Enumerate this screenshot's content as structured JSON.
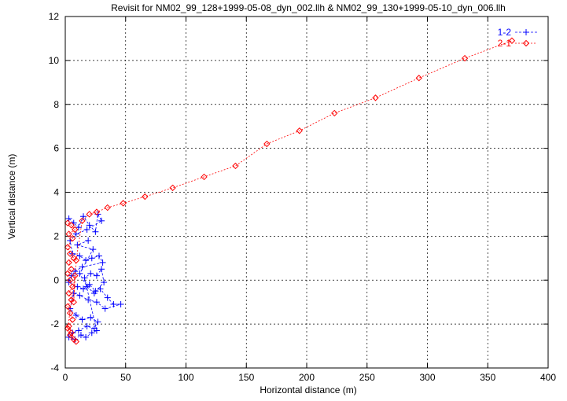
{
  "chart_data": {
    "type": "scatter",
    "title": "Revisit for NM02_99_128+1999-05-08_dyn_002.llh & NM02_99_130+1999-05-10_dyn_006.llh",
    "xlabel": "Horizontal distance (m)",
    "ylabel": "Vertical distance (m)",
    "xlim": [
      0,
      400
    ],
    "ylim": [
      -4,
      12
    ],
    "x_ticks": [
      0,
      50,
      100,
      150,
      200,
      250,
      300,
      350,
      400
    ],
    "y_ticks": [
      -4,
      -2,
      0,
      2,
      4,
      6,
      8,
      10,
      12
    ],
    "grid": true,
    "legend_position": "top-right",
    "series": [
      {
        "name": "1-2",
        "color": "#0000ff",
        "marker": "plus",
        "line": "dashed",
        "points": [
          [
            3,
            2.8
          ],
          [
            7,
            2.6
          ],
          [
            11,
            2.4
          ],
          [
            15,
            2.9
          ],
          [
            20,
            2.5
          ],
          [
            25,
            2.2
          ],
          [
            27,
            3.0
          ],
          [
            30,
            2.7
          ],
          [
            18,
            2.3
          ],
          [
            9,
            2.1
          ],
          [
            4,
            1.8
          ],
          [
            6,
            1.2
          ],
          [
            12,
            1.1
          ],
          [
            17,
            0.9
          ],
          [
            22,
            1.0
          ],
          [
            28,
            1.1
          ],
          [
            31,
            0.8
          ],
          [
            14,
            0.6
          ],
          [
            8,
            0.4
          ],
          [
            5,
            0.2
          ],
          [
            3,
            -0.1
          ],
          [
            10,
            -0.3
          ],
          [
            15,
            -0.4
          ],
          [
            20,
            -0.2
          ],
          [
            25,
            -0.5
          ],
          [
            29,
            -0.4
          ],
          [
            35,
            -0.8
          ],
          [
            40,
            -1.1
          ],
          [
            46,
            -1.1
          ],
          [
            33,
            -1.3
          ],
          [
            26,
            -1.0
          ],
          [
            19,
            -0.9
          ],
          [
            12,
            -0.7
          ],
          [
            7,
            -0.6
          ],
          [
            4,
            -1.3
          ],
          [
            9,
            -1.6
          ],
          [
            14,
            -1.8
          ],
          [
            21,
            -1.7
          ],
          [
            27,
            -1.9
          ],
          [
            24,
            -2.2
          ],
          [
            18,
            -2.1
          ],
          [
            11,
            -2.3
          ],
          [
            6,
            -2.4
          ],
          [
            3,
            -2.6
          ],
          [
            8,
            -2.7
          ],
          [
            13,
            -2.5
          ],
          [
            17,
            -2.6
          ],
          [
            22,
            -2.4
          ],
          [
            26,
            -2.3
          ],
          [
            16,
            0.1
          ],
          [
            21,
            0.3
          ],
          [
            26,
            0.2
          ],
          [
            30,
            0.5
          ],
          [
            32,
            -0.1
          ],
          [
            24,
            -0.6
          ],
          [
            18,
            -0.3
          ],
          [
            12,
            0.3
          ],
          [
            23,
            1.4
          ],
          [
            10,
            1.6
          ],
          [
            19,
            1.8
          ]
        ]
      },
      {
        "name": "2-1",
        "color": "#ff0000",
        "marker": "diamond",
        "line": "dotted",
        "points": [
          [
            2,
            2.6
          ],
          [
            5,
            2.5
          ],
          [
            8,
            2.3
          ],
          [
            3,
            2.1
          ],
          [
            6,
            1.9
          ],
          [
            2,
            1.5
          ],
          [
            4,
            1.2
          ],
          [
            7,
            1.0
          ],
          [
            3,
            0.8
          ],
          [
            5,
            0.5
          ],
          [
            2,
            0.3
          ],
          [
            4,
            0.0
          ],
          [
            6,
            -0.3
          ],
          [
            3,
            -0.6
          ],
          [
            5,
            -0.9
          ],
          [
            2,
            -1.2
          ],
          [
            4,
            -1.5
          ],
          [
            6,
            -1.8
          ],
          [
            3,
            -2.1
          ],
          [
            5,
            -2.4
          ],
          [
            7,
            -2.7
          ],
          [
            9,
            -2.8
          ],
          [
            4,
            -2.5
          ],
          [
            2,
            -2.2
          ],
          [
            8,
            0.2
          ],
          [
            7,
            -1.0
          ],
          [
            9,
            0.9
          ],
          [
            14,
            2.7
          ],
          [
            20,
            3.0
          ],
          [
            26,
            3.1
          ],
          [
            35,
            3.3
          ],
          [
            48,
            3.5
          ],
          [
            66,
            3.8
          ],
          [
            89,
            4.2
          ],
          [
            115,
            4.7
          ],
          [
            141,
            5.2
          ],
          [
            167,
            6.2
          ],
          [
            194,
            6.8
          ],
          [
            223,
            7.6
          ],
          [
            257,
            8.3
          ],
          [
            293,
            9.2
          ],
          [
            331,
            10.1
          ],
          [
            370,
            10.9
          ]
        ]
      }
    ]
  }
}
